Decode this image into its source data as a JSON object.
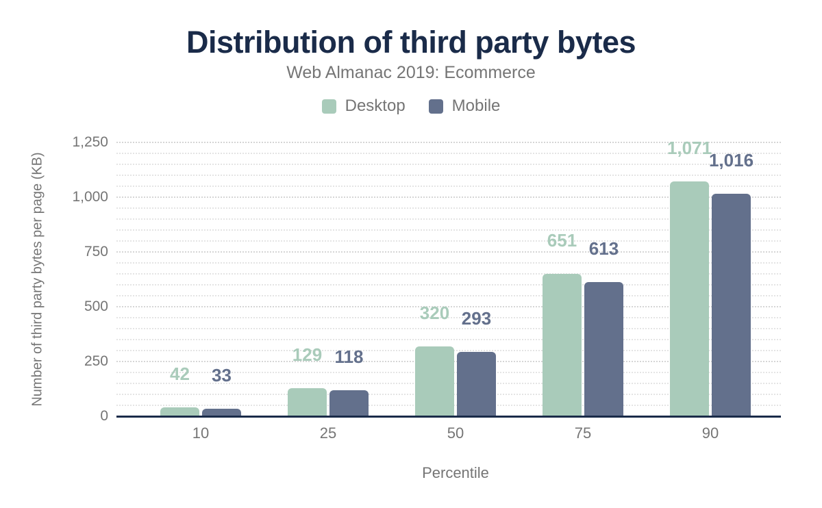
{
  "chart_data": {
    "type": "bar",
    "title": "Distribution of third party bytes",
    "subtitle": "Web Almanac 2019: Ecommerce",
    "categories": [
      "10",
      "25",
      "50",
      "75",
      "90"
    ],
    "series": [
      {
        "name": "Desktop",
        "color": "#a9cbba",
        "values": [
          42,
          129,
          320,
          651,
          1071
        ],
        "labels": [
          "42",
          "129",
          "320",
          "651",
          "1,071"
        ]
      },
      {
        "name": "Mobile",
        "color": "#63708c",
        "values": [
          33,
          118,
          293,
          613,
          1016
        ],
        "labels": [
          "33",
          "118",
          "293",
          "613",
          "1,016"
        ]
      }
    ],
    "xlabel": "Percentile",
    "ylabel": "Number of third party bytes per page (KB)",
    "ylim": [
      0,
      1250
    ],
    "y_ticks": [
      "0",
      "250",
      "500",
      "750",
      "1,000",
      "1,250"
    ],
    "y_tick_values": [
      0,
      250,
      500,
      750,
      1000,
      1250
    ],
    "minor_grid_step": 50,
    "grid": "horizontal dotted, minor every 50 KB",
    "legend_position": "top-center",
    "bar_value_labels": "shown above bars, colored per series"
  },
  "colors": {
    "title": "#1a2b49",
    "muted_text": "#757575",
    "axis_line": "#1a2b49",
    "gridline_minor": "#e4e4e4",
    "gridline_major": "#d5d5d5",
    "desktop": "#a9cbba",
    "mobile": "#63708c",
    "background": "#ffffff"
  }
}
